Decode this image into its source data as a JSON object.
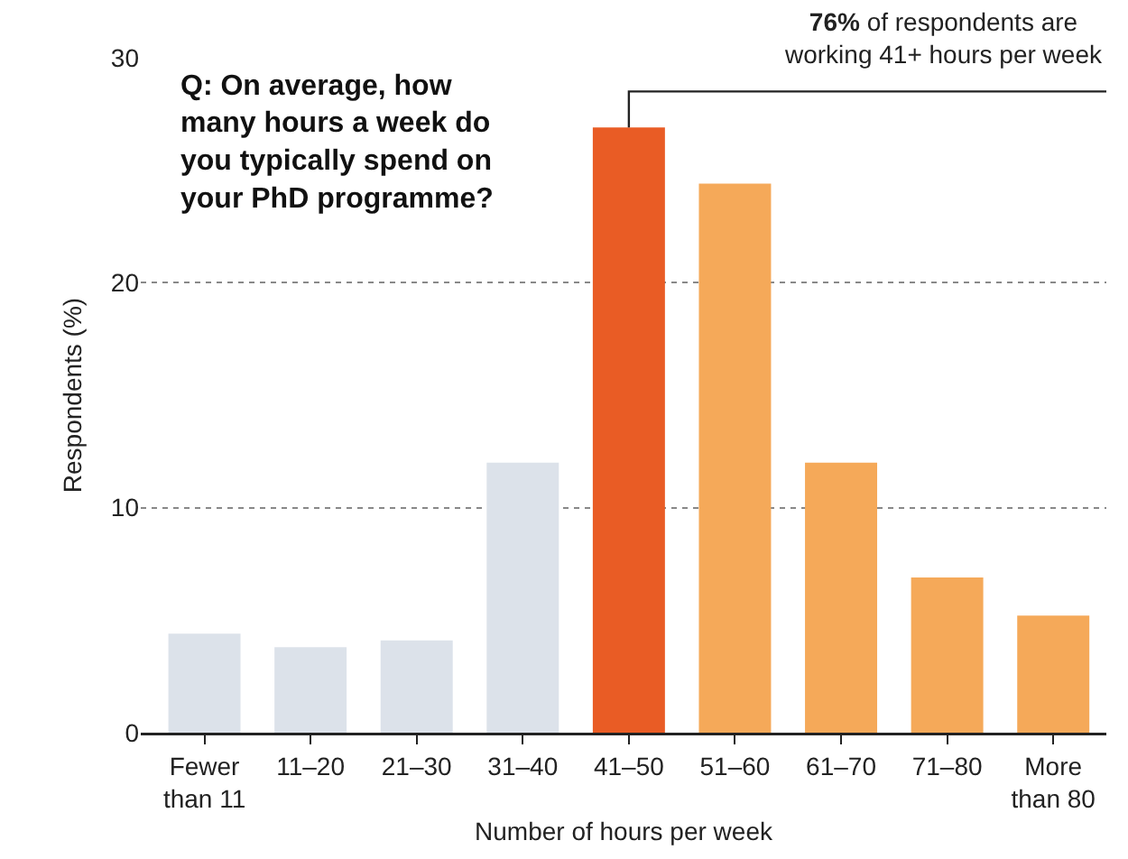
{
  "chart_data": {
    "type": "bar",
    "title": "Q: On average, how many hours a week do you typically spend on your PhD programme?",
    "xlabel": "Number of hours per week",
    "ylabel": "Respondents (%)",
    "categories": [
      "Fewer than 11",
      "11–20",
      "21–30",
      "31–40",
      "41–50",
      "51–60",
      "61–70",
      "71–80",
      "More than 80"
    ],
    "values": [
      4.4,
      3.8,
      4.1,
      12.0,
      26.9,
      24.4,
      12.0,
      6.9,
      5.2
    ],
    "colors": [
      "#dce2ea",
      "#dce2ea",
      "#dce2ea",
      "#dce2ea",
      "#e95c25",
      "#f5a959",
      "#f5a959",
      "#f5a959",
      "#f5a959"
    ],
    "ylim": [
      0,
      30
    ],
    "yticks": [
      0,
      10,
      20,
      30
    ],
    "grid": "y",
    "annotations": [
      "76% of respondents are working 41+ hours per week"
    ]
  }
}
